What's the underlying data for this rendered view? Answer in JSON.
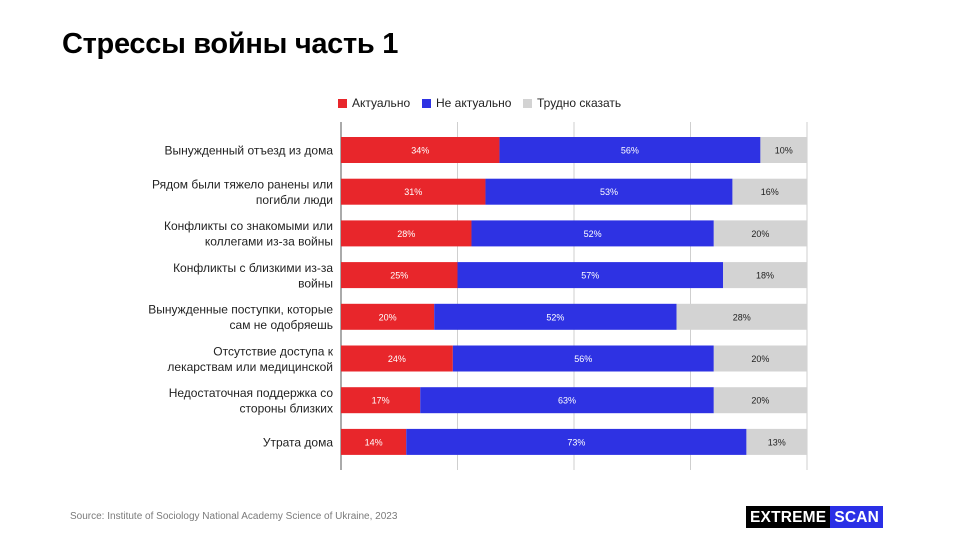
{
  "title": "Стрессы войны часть 1",
  "source": "Source: Institute of Sociology National Academy Science of Ukraine, 2023",
  "logo": {
    "part1": "EXTREME",
    "part2": "SCAN"
  },
  "colors": {
    "actual": "#e8262b",
    "not_actual": "#2e32e3",
    "hard": "#d3d3d3"
  },
  "chart_data": {
    "type": "bar",
    "orientation": "horizontal",
    "stacked": true,
    "categories": [
      "Вынужденный отъезд из дома",
      "Рядом были тяжело ранены или погибли люди",
      "Конфликты со знакомыми или коллегами из-за войны",
      "Конфликты с близкими из-за войны",
      "Вынужденные поступки, которые сам не одобряешь",
      "Отсутствие доступа к лекарствам или медицинской",
      "Недостаточная поддержка со стороны близких",
      "Утрата дома"
    ],
    "category_lines": [
      [
        "Вынужденный отъезд из дома"
      ],
      [
        "Рядом были тяжело ранены или",
        "погибли люди"
      ],
      [
        "Конфликты со знакомыми или",
        "коллегами из-за войны"
      ],
      [
        "Конфликты с близкими из-за",
        "войны"
      ],
      [
        "Вынужденные поступки, которые",
        "сам не одобряешь"
      ],
      [
        "Отсутствие доступа к",
        "лекарствам или медицинской"
      ],
      [
        "Недостаточная поддержка со",
        "стороны близких"
      ],
      [
        "Утрата дома"
      ]
    ],
    "series": [
      {
        "name": "Актуально",
        "color": "#e8262b",
        "label_color": "#ffffff",
        "values": [
          34,
          31,
          28,
          25,
          20,
          24,
          17,
          14
        ]
      },
      {
        "name": "Не актуально",
        "color": "#2e32e3",
        "label_color": "#ffffff",
        "values": [
          56,
          53,
          52,
          57,
          52,
          56,
          63,
          73
        ]
      },
      {
        "name": "Трудно сказать",
        "color": "#d3d3d3",
        "label_color": "#222222",
        "values": [
          10,
          16,
          20,
          18,
          28,
          20,
          20,
          13
        ]
      }
    ],
    "xlim": [
      0,
      100
    ],
    "grid": true,
    "legend": "top-center",
    "value_format": "percent"
  }
}
